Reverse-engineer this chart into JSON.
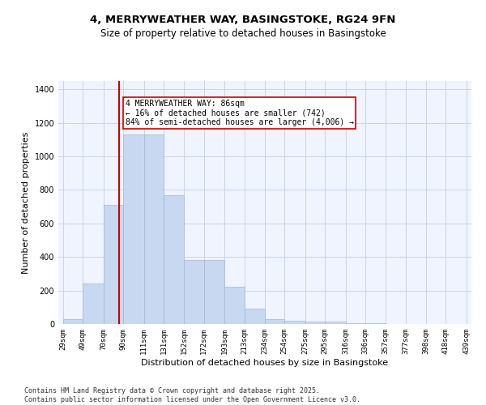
{
  "title_line1": "4, MERRYWEATHER WAY, BASINGSTOKE, RG24 9FN",
  "title_line2": "Size of property relative to detached houses in Basingstoke",
  "xlabel": "Distribution of detached houses by size in Basingstoke",
  "ylabel": "Number of detached properties",
  "bins": [
    29,
    49,
    70,
    90,
    111,
    131,
    152,
    172,
    193,
    213,
    234,
    254,
    275,
    295,
    316,
    336,
    357,
    377,
    398,
    418,
    439
  ],
  "bin_labels": [
    "29sqm",
    "49sqm",
    "70sqm",
    "90sqm",
    "111sqm",
    "131sqm",
    "152sqm",
    "172sqm",
    "193sqm",
    "213sqm",
    "234sqm",
    "254sqm",
    "275sqm",
    "295sqm",
    "316sqm",
    "336sqm",
    "357sqm",
    "377sqm",
    "398sqm",
    "418sqm",
    "439sqm"
  ],
  "counts": [
    30,
    240,
    710,
    1130,
    1130,
    770,
    380,
    380,
    220,
    90,
    30,
    20,
    15,
    15,
    5,
    5,
    0,
    0,
    0,
    0
  ],
  "bar_color": "#c8d8f0",
  "bar_edge_color": "#a0b8d8",
  "vline_x": 86,
  "vline_color": "#cc0000",
  "annotation_text": "4 MERRYWEATHER WAY: 86sqm\n← 16% of detached houses are smaller (742)\n84% of semi-detached houses are larger (4,006) →",
  "annotation_box_edgecolor": "#cc0000",
  "ylim": [
    0,
    1450
  ],
  "yticks": [
    0,
    200,
    400,
    600,
    800,
    1000,
    1200,
    1400
  ],
  "bg_color": "#f0f4ff",
  "grid_color": "#c8d4e8",
  "footer": "Contains HM Land Registry data © Crown copyright and database right 2025.\nContains public sector information licensed under the Open Government Licence v3.0.",
  "title_fontsize": 9.5,
  "subtitle_fontsize": 8.5,
  "label_fontsize": 8,
  "tick_fontsize": 6.5,
  "annot_fontsize": 7,
  "footer_fontsize": 6
}
